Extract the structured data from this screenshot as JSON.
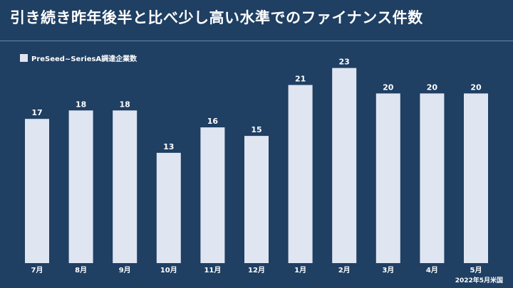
{
  "slide": {
    "title": "引き続き昨年後半と比べ少し高い水準でのファイナンス件数",
    "source_note": "2022年5月米国"
  },
  "colors": {
    "background": "#1f3f63",
    "bar": "#dfe5f1",
    "text": "#ffffff"
  },
  "chart_data": {
    "type": "bar",
    "categories": [
      "7月",
      "8月",
      "9月",
      "10月",
      "11月",
      "12月",
      "1月",
      "2月",
      "3月",
      "4月",
      "5月"
    ],
    "series": [
      {
        "name": "PreSeed~SeriesA調達企業数",
        "values": [
          17,
          18,
          18,
          13,
          16,
          15,
          21,
          23,
          20,
          20,
          20
        ]
      }
    ],
    "ylim": [
      0,
      25
    ],
    "legend_position": "top-left",
    "grid": false,
    "data_labels": true
  }
}
